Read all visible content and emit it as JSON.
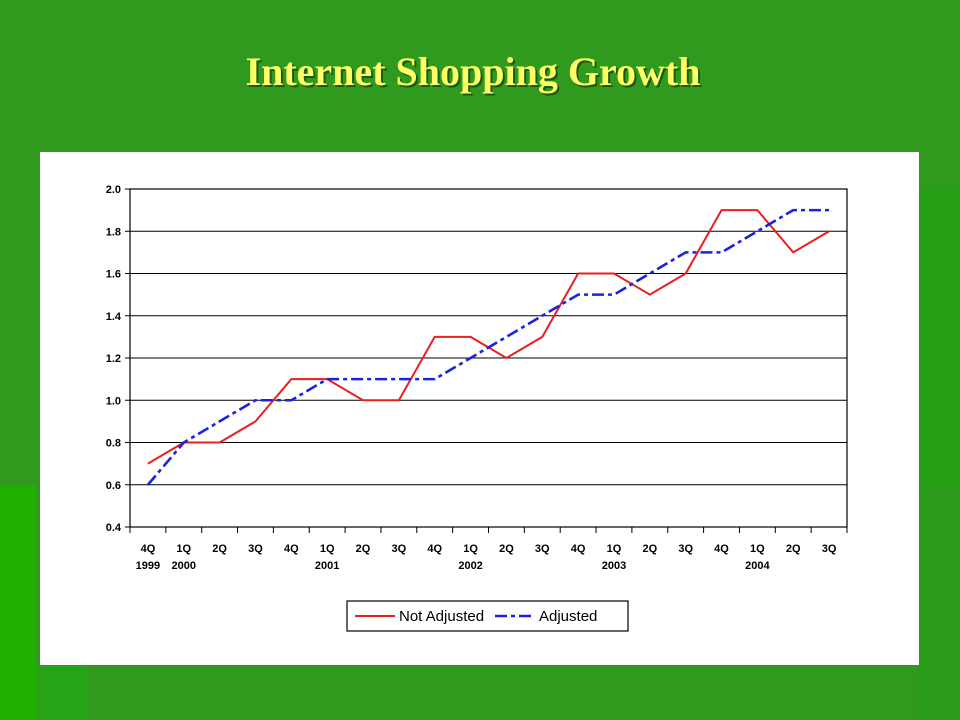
{
  "slide": {
    "title": "Internet Shopping Growth"
  },
  "colors": {
    "background": "#2f9a1e",
    "title": "#ffff66",
    "panel": "#ffffff",
    "not_adjusted": "#e8201c",
    "adjusted": "#1a24e0"
  },
  "chart_data": {
    "type": "line",
    "title": "",
    "xlabel": "",
    "ylabel": "",
    "ylim": [
      0.4,
      2.0
    ],
    "yticks": [
      "2.0",
      "1.8",
      "1.6",
      "1.4",
      "1.2",
      "1.0",
      "0.8",
      "0.6",
      "0.4"
    ],
    "grid": true,
    "legend_position": "bottom-center",
    "categories": [
      "4Q",
      "1Q",
      "2Q",
      "3Q",
      "4Q",
      "1Q",
      "2Q",
      "3Q",
      "4Q",
      "1Q",
      "2Q",
      "3Q",
      "4Q",
      "1Q",
      "2Q",
      "3Q",
      "4Q",
      "1Q",
      "2Q",
      "3Q"
    ],
    "year_labels": [
      {
        "index": 0,
        "label": "1999"
      },
      {
        "index": 1,
        "label": "2000"
      },
      {
        "index": 5,
        "label": "2001"
      },
      {
        "index": 9,
        "label": "2002"
      },
      {
        "index": 13,
        "label": "2003"
      },
      {
        "index": 17,
        "label": "2004"
      }
    ],
    "series": [
      {
        "name": "Not Adjusted",
        "style": "solid",
        "values": [
          0.7,
          0.8,
          0.8,
          0.9,
          1.1,
          1.1,
          1.0,
          1.0,
          1.3,
          1.3,
          1.2,
          1.3,
          1.6,
          1.6,
          1.5,
          1.6,
          1.9,
          1.9,
          1.7,
          1.8
        ]
      },
      {
        "name": "Adjusted",
        "style": "dash-dot",
        "values": [
          0.6,
          0.8,
          0.9,
          1.0,
          1.0,
          1.1,
          1.1,
          1.1,
          1.1,
          1.2,
          1.3,
          1.4,
          1.5,
          1.5,
          1.6,
          1.7,
          1.7,
          1.8,
          1.9,
          1.9
        ]
      }
    ]
  }
}
